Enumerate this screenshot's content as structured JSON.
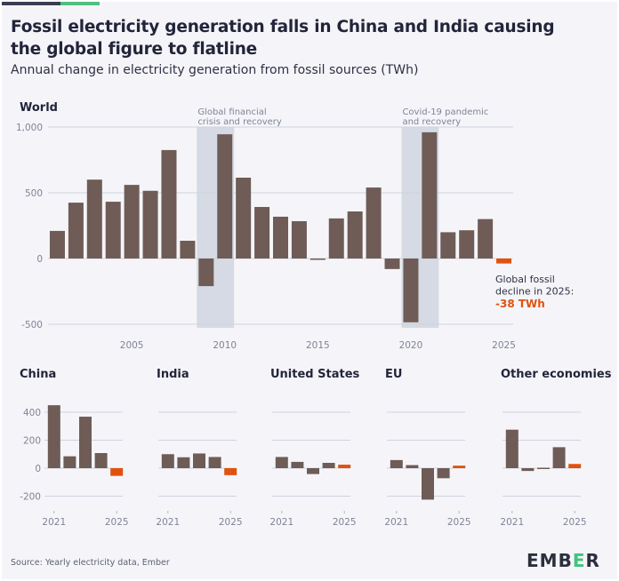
{
  "header": {
    "title": "Fossil electricity generation falls in China and India causing the global figure to flatline",
    "subtitle": "Annual change in electricity generation from fossil sources (TWh)"
  },
  "footer": {
    "source": "Source: Yearly electricity data, Ember",
    "logo": "EMBER",
    "logo_parts": [
      "EMB",
      "E",
      "R"
    ]
  },
  "colors": {
    "bar": "#6f5c56",
    "highlight": "#e0520e",
    "band": "#d5dae4",
    "grid": "#cfd3dd",
    "axis_text": "#7f8396",
    "title_text": "#22243a",
    "brand_green": "#3fc47c"
  },
  "chart_data": [
    {
      "type": "bar",
      "title": "World",
      "xlabel": "",
      "ylabel": "TWh",
      "ylim": [
        -500,
        1000
      ],
      "yticks": [
        1000,
        500,
        0,
        -500
      ],
      "ytick_labels": [
        "1,000",
        "500",
        "0",
        "-500"
      ],
      "xtick_labels": [
        "2005",
        "2010",
        "2015",
        "2020",
        "2025"
      ],
      "categories": [
        2001,
        2002,
        2003,
        2004,
        2005,
        2006,
        2007,
        2008,
        2009,
        2010,
        2011,
        2012,
        2013,
        2014,
        2015,
        2016,
        2017,
        2018,
        2019,
        2020,
        2021,
        2022,
        2023,
        2024,
        2025
      ],
      "values": [
        210,
        425,
        600,
        432,
        560,
        515,
        825,
        135,
        -210,
        945,
        615,
        392,
        318,
        284,
        -5,
        305,
        358,
        540,
        -80,
        -485,
        960,
        200,
        215,
        300,
        -38
      ],
      "highlight_category": 2025,
      "grid": true,
      "bands": [
        {
          "label_lines": [
            "Global financial",
            "crisis and recovery"
          ],
          "from": 2009,
          "to": 2010
        },
        {
          "label_lines": [
            "Covid-19 pandemic",
            "and recovery"
          ],
          "from": 2020,
          "to": 2021
        }
      ],
      "annotation": {
        "lines": [
          "Global fossil",
          "decline in 2025:"
        ],
        "value": "-38 TWh"
      }
    },
    {
      "type": "bar",
      "title": "China",
      "ylim": [
        -200,
        400
      ],
      "yticks": [
        400,
        200,
        0,
        -200
      ],
      "ytick_labels": [
        "400",
        "200",
        "0",
        "-200"
      ],
      "xtick_labels": [
        "2021",
        "2025"
      ],
      "categories": [
        2021,
        2022,
        2023,
        2024,
        2025
      ],
      "values": [
        450,
        85,
        368,
        108,
        -55
      ],
      "highlight_category": 2025,
      "grid": true
    },
    {
      "type": "bar",
      "title": "India",
      "ylim": [
        -200,
        400
      ],
      "yticks": [
        400,
        200,
        0,
        -200
      ],
      "xtick_labels": [
        "2021",
        "2025"
      ],
      "categories": [
        2021,
        2022,
        2023,
        2024,
        2025
      ],
      "values": [
        100,
        78,
        105,
        80,
        -50
      ],
      "highlight_category": 2025,
      "grid": true
    },
    {
      "type": "bar",
      "title": "United States",
      "ylim": [
        -200,
        400
      ],
      "yticks": [
        400,
        200,
        0,
        -200
      ],
      "xtick_labels": [
        "2021",
        "2025"
      ],
      "categories": [
        2021,
        2022,
        2023,
        2024,
        2025
      ],
      "values": [
        80,
        45,
        -42,
        38,
        25
      ],
      "highlight_category": 2025,
      "grid": true
    },
    {
      "type": "bar",
      "title": "EU",
      "ylim": [
        -200,
        400
      ],
      "yticks": [
        400,
        200,
        0,
        -200
      ],
      "xtick_labels": [
        "2021",
        "2025"
      ],
      "categories": [
        2021,
        2022,
        2023,
        2024,
        2025
      ],
      "values": [
        58,
        22,
        -225,
        -72,
        18
      ],
      "highlight_category": 2025,
      "grid": true
    },
    {
      "type": "bar",
      "title": "Other economies",
      "ylim": [
        -200,
        400
      ],
      "yticks": [
        400,
        200,
        0,
        -200
      ],
      "xtick_labels": [
        "2021",
        "2025"
      ],
      "categories": [
        2021,
        2022,
        2023,
        2024,
        2025
      ],
      "values": [
        275,
        -20,
        8,
        150,
        30
      ],
      "highlight_category": 2025,
      "grid": true
    }
  ]
}
